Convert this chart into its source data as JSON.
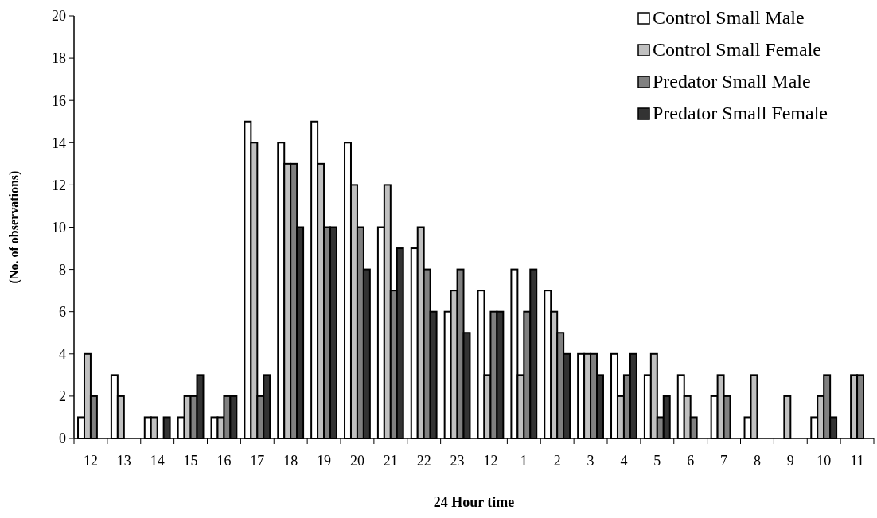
{
  "chart_data": {
    "type": "bar",
    "xlabel": "24 Hour time",
    "ylabel": "(No. of observations)",
    "categories": [
      "12",
      "13",
      "14",
      "15",
      "16",
      "17",
      "18",
      "19",
      "20",
      "21",
      "22",
      "23",
      "12",
      "1",
      "2",
      "3",
      "4",
      "5",
      "6",
      "7",
      "8",
      "9",
      "10",
      "11"
    ],
    "series": [
      {
        "name": "Control Small Male",
        "color": "#ffffff",
        "values": [
          1,
          3,
          1,
          1,
          1,
          15,
          14,
          15,
          14,
          10,
          9,
          6,
          7,
          8,
          7,
          4,
          4,
          3,
          3,
          2,
          1,
          0,
          1,
          0
        ]
      },
      {
        "name": "Control Small Female",
        "color": "#c0c0c0",
        "values": [
          4,
          2,
          1,
          2,
          1,
          14,
          13,
          13,
          12,
          12,
          10,
          7,
          3,
          3,
          6,
          4,
          2,
          4,
          2,
          3,
          3,
          2,
          2,
          3
        ]
      },
      {
        "name": "Predator Small Male",
        "color": "#808080",
        "values": [
          2,
          0,
          0,
          2,
          2,
          2,
          13,
          10,
          10,
          7,
          8,
          8,
          6,
          6,
          5,
          4,
          3,
          1,
          1,
          2,
          0,
          0,
          3,
          3
        ]
      },
      {
        "name": "Predator Small Female",
        "color": "#333333",
        "values": [
          0,
          0,
          1,
          3,
          2,
          3,
          10,
          10,
          8,
          9,
          6,
          5,
          6,
          8,
          4,
          3,
          4,
          2,
          0,
          0,
          0,
          0,
          1,
          0
        ]
      }
    ],
    "ylim": [
      0,
      20
    ],
    "yticks": [
      0,
      2,
      4,
      6,
      8,
      10,
      12,
      14,
      16,
      18,
      20
    ],
    "grid": false,
    "legend": "top right"
  }
}
